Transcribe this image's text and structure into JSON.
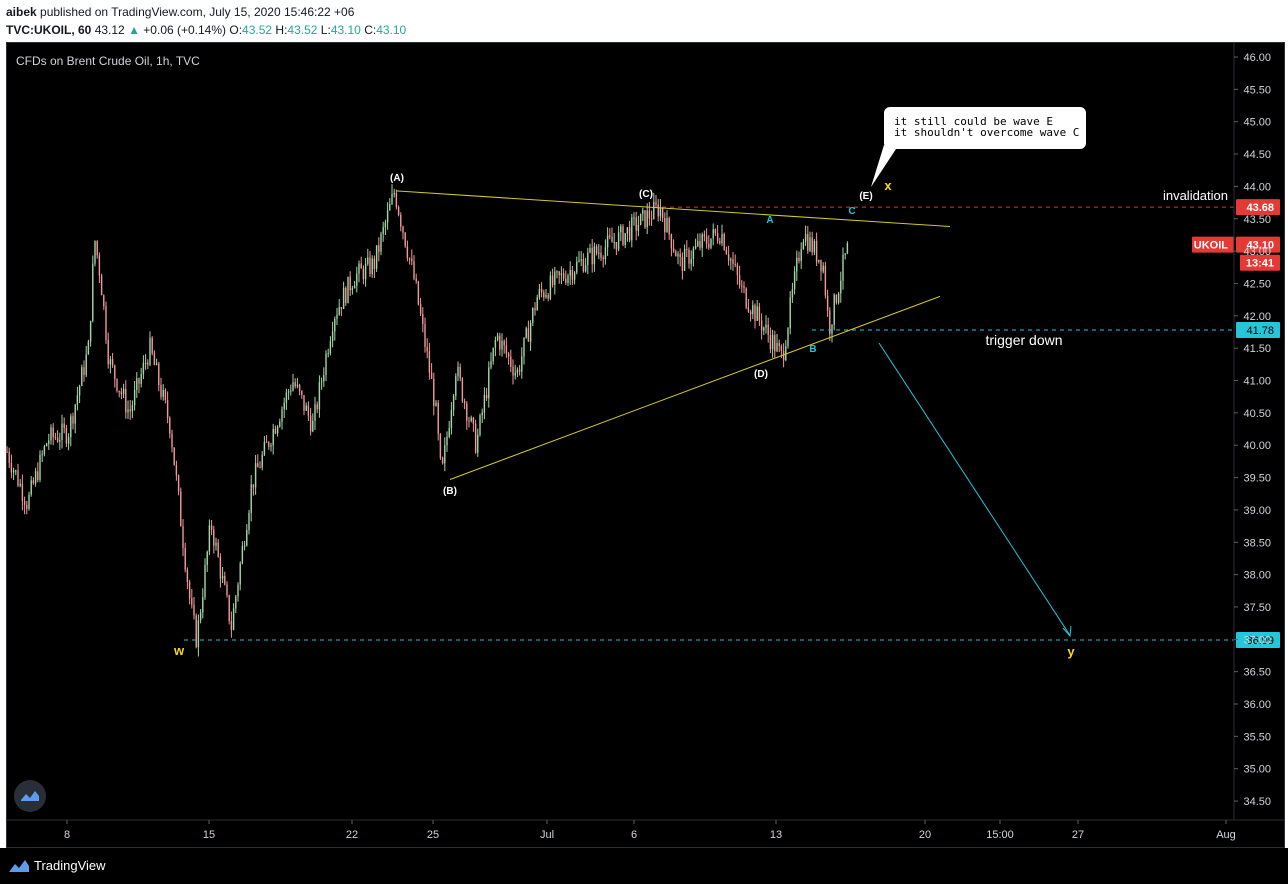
{
  "header": {
    "author": "aibek",
    "published_text": "published on TradingView.com, July 15, 2020 15:46:22 +06",
    "symbol": "TVC:UKOIL, 60",
    "last_price": "43.12",
    "change_arrow": "▲",
    "change": "+0.06 (+0.14%)",
    "o_label": "O:",
    "o_value": "43.52",
    "h_label": "H:",
    "h_value": "43.52",
    "l_label": "L:",
    "l_value": "43.10",
    "c_label": "C:",
    "c_value": "43.10"
  },
  "chart_title": "CFDs on Brent Crude Oil, 1h, TVC",
  "footer": {
    "brand": "TradingView"
  },
  "callout": {
    "line1": "it still could be wave E",
    "line2": "it shouldn't overcome wave C"
  },
  "colors": {
    "background": "#000000",
    "up_candle": "#a5d6a7",
    "down_candle": "#ef9a9a",
    "trendline": "#d4c92a",
    "projection": "#26c6da",
    "invalidation": "#e53935",
    "tick_label": "#d1d4dc",
    "wave_label_yellow": "#f5d922",
    "wave_label_cyan": "#26c6da"
  },
  "chart_data": {
    "type": "candlestick",
    "title": "CFDs on Brent Crude Oil, 1h, TVC",
    "ylim": [
      34.25,
      46.25
    ],
    "y_ticks": [
      "46.00",
      "45.50",
      "45.00",
      "44.50",
      "44.00",
      "43.50",
      "43.00",
      "42.50",
      "42.00",
      "41.50",
      "41.00",
      "40.50",
      "40.00",
      "39.50",
      "39.00",
      "38.50",
      "38.00",
      "37.50",
      "37.00",
      "36.50",
      "36.00",
      "35.50",
      "35.00",
      "34.50"
    ],
    "x_ticks": [
      "8",
      "15",
      "22",
      "25",
      "Jul",
      "6",
      "13",
      "20",
      "15:00",
      "27",
      "Aug"
    ],
    "price_path": [
      {
        "x": "Jun 4",
        "y": 39.9
      },
      {
        "x": "Jun 5",
        "y": 39.1
      },
      {
        "x": "Jun 6",
        "y": 40.1
      },
      {
        "x": "Jun 7",
        "y": 40.2
      },
      {
        "x": "Jun 8",
        "y": 41.5
      },
      {
        "x": "Jun 8",
        "y": 43.2
      },
      {
        "x": "Jun 8",
        "y": 42.6
      },
      {
        "x": "Jun 9",
        "y": 41.3
      },
      {
        "x": "Jun 10",
        "y": 40.5
      },
      {
        "x": "Jun 11",
        "y": 41.5
      },
      {
        "x": "Jun 12",
        "y": 40.3
      },
      {
        "x": "Jun 13",
        "y": 37.5
      },
      {
        "x": "Jun 13",
        "y": 36.99
      },
      {
        "x": "Jun 14",
        "y": 38.8
      },
      {
        "x": "Jun 15",
        "y": 37.2
      },
      {
        "x": "Jun 16",
        "y": 39.4
      },
      {
        "x": "Jun 18",
        "y": 41.0
      },
      {
        "x": "Jun 19",
        "y": 40.3
      },
      {
        "x": "Jun 20",
        "y": 42.0
      },
      {
        "x": "Jun 21",
        "y": 42.6
      },
      {
        "x": "Jun 22",
        "y": 42.8
      },
      {
        "x": "Jun 23",
        "y": 43.93
      },
      {
        "x": "Jun 24",
        "y": 42.5
      },
      {
        "x": "Jun 25",
        "y": 40.6
      },
      {
        "x": "Jun 25",
        "y": 39.47
      },
      {
        "x": "Jun 26",
        "y": 41.2
      },
      {
        "x": "Jun 27",
        "y": 40.0
      },
      {
        "x": "Jun 28",
        "y": 41.7
      },
      {
        "x": "Jun 29",
        "y": 41.1
      },
      {
        "x": "Jun 30",
        "y": 42.3
      },
      {
        "x": "Jul 2",
        "y": 42.8
      },
      {
        "x": "Jul 4",
        "y": 43.2
      },
      {
        "x": "Jul 6",
        "y": 43.68
      },
      {
        "x": "Jul 7",
        "y": 42.8
      },
      {
        "x": "Jul 8",
        "y": 43.1
      },
      {
        "x": "Jul 9",
        "y": 43.3
      },
      {
        "x": "Jul 10",
        "y": 42.4
      },
      {
        "x": "Jul 12",
        "y": 41.35
      },
      {
        "x": "Jul 13",
        "y": 43.3
      },
      {
        "x": "Jul 14",
        "y": 42.8
      },
      {
        "x": "Jul 14",
        "y": 41.8
      },
      {
        "x": "Jul 15",
        "y": 42.8
      },
      {
        "x": "Jul 15",
        "y": 43.12
      }
    ],
    "current_price": "43.10",
    "current_symbol": "UKOIL",
    "countdown": "13:41",
    "levels": [
      {
        "label": "invalidation",
        "price_label": "43.68",
        "value": 43.68
      },
      {
        "label": "trigger down",
        "price_label": "41.78",
        "value": 41.78
      },
      {
        "label": "",
        "price_label": "36.99",
        "value": 36.99
      }
    ],
    "wave_labels": [
      "(A)",
      "(B)",
      "(C)",
      "(D)",
      "(E)",
      "A",
      "B",
      "C",
      "w",
      "x",
      "y"
    ]
  }
}
